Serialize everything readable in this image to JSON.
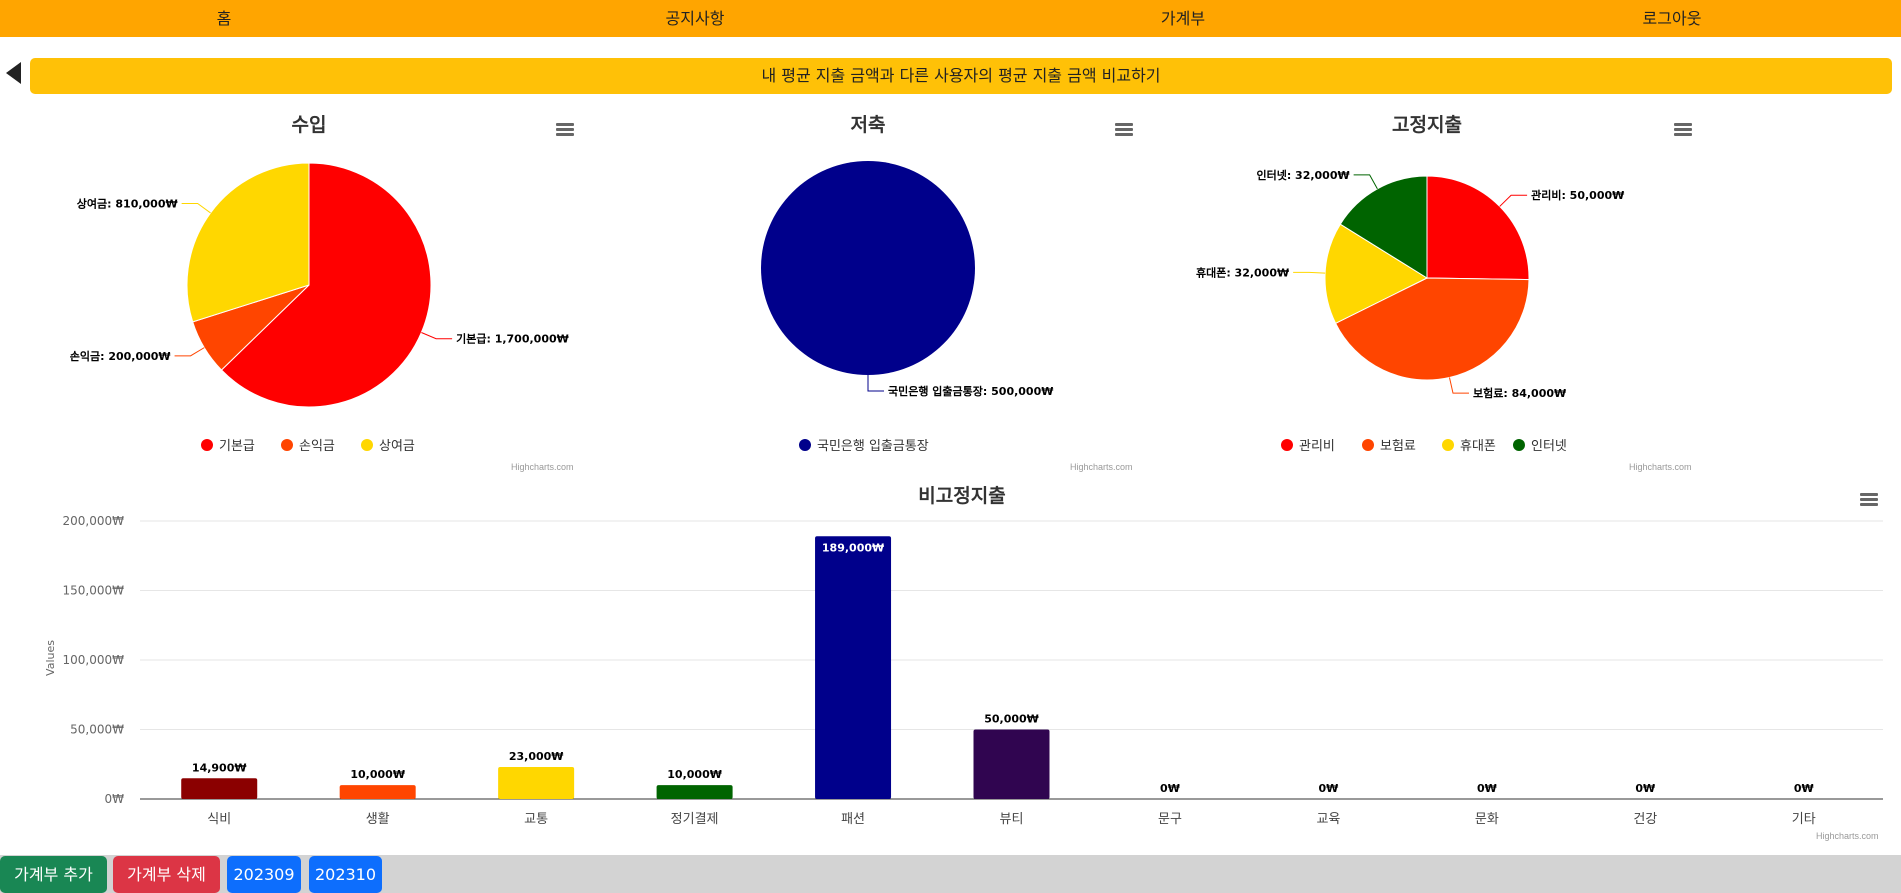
{
  "nav": {
    "items": [
      {
        "label": "홈"
      },
      {
        "label": "공지사항"
      },
      {
        "label": "가계부"
      },
      {
        "label": "로그아웃"
      }
    ]
  },
  "compare_button": "내 평균 지출 금액과 다른 사용자의 평균 지출 금액 비교하기",
  "credit": "Highcharts.com",
  "chart_data": [
    {
      "type": "pie",
      "title": "수입",
      "slices": [
        {
          "name": "기본급",
          "value": 1700000,
          "label": "기본급: 1,700,000₩",
          "color": "#FF0000"
        },
        {
          "name": "손익금",
          "value": 200000,
          "label": "손익금: 200,000₩",
          "color": "#FF4500"
        },
        {
          "name": "상여금",
          "value": 810000,
          "label": "상여금: 810,000₩",
          "color": "#FFD700"
        }
      ]
    },
    {
      "type": "pie",
      "title": "저축",
      "slices": [
        {
          "name": "국민은행 입출금통장",
          "value": 500000,
          "label": "국민은행 입출금통장: 500,000₩",
          "color": "#00008B"
        }
      ]
    },
    {
      "type": "pie",
      "title": "고정지출",
      "slices": [
        {
          "name": "관리비",
          "value": 50000,
          "label": "관리비: 50,000₩",
          "color": "#FF0000"
        },
        {
          "name": "보험료",
          "value": 84000,
          "label": "보험료: 84,000₩",
          "color": "#FF4500"
        },
        {
          "name": "휴대폰",
          "value": 32000,
          "label": "휴대폰: 32,000₩",
          "color": "#FFD700"
        },
        {
          "name": "인터넷",
          "value": 32000,
          "label": "인터넷: 32,000₩",
          "color": "#006400"
        }
      ]
    },
    {
      "type": "bar",
      "title": "비고정지출",
      "ylabel": "Values",
      "ylim": [
        0,
        200000
      ],
      "yticks": [
        "0₩",
        "50,000₩",
        "100,000₩",
        "150,000₩",
        "200,000₩"
      ],
      "categories": [
        "식비",
        "생활",
        "교통",
        "정기결제",
        "패션",
        "뷰티",
        "문구",
        "교육",
        "문화",
        "건강",
        "기타"
      ],
      "values": [
        14900,
        10000,
        23000,
        10000,
        189000,
        50000,
        0,
        0,
        0,
        0,
        0
      ],
      "data_labels": [
        "14,900₩",
        "10,000₩",
        "23,000₩",
        "10,000₩",
        "189,000₩",
        "50,000₩",
        "0₩",
        "0₩",
        "0₩",
        "0₩",
        "0₩"
      ],
      "colors": [
        "#8B0000",
        "#FF4500",
        "#FFD700",
        "#006400",
        "#00008B",
        "#300550",
        "#808080",
        "#808080",
        "#808080",
        "#808080",
        "#808080"
      ]
    }
  ],
  "footer": {
    "add_button": "가계부 추가",
    "delete_button": "가계부 삭제",
    "months": [
      "202309",
      "202310"
    ],
    "colors": {
      "add": "#198754",
      "delete": "#DC3545",
      "month": "#0D6EFD"
    }
  }
}
